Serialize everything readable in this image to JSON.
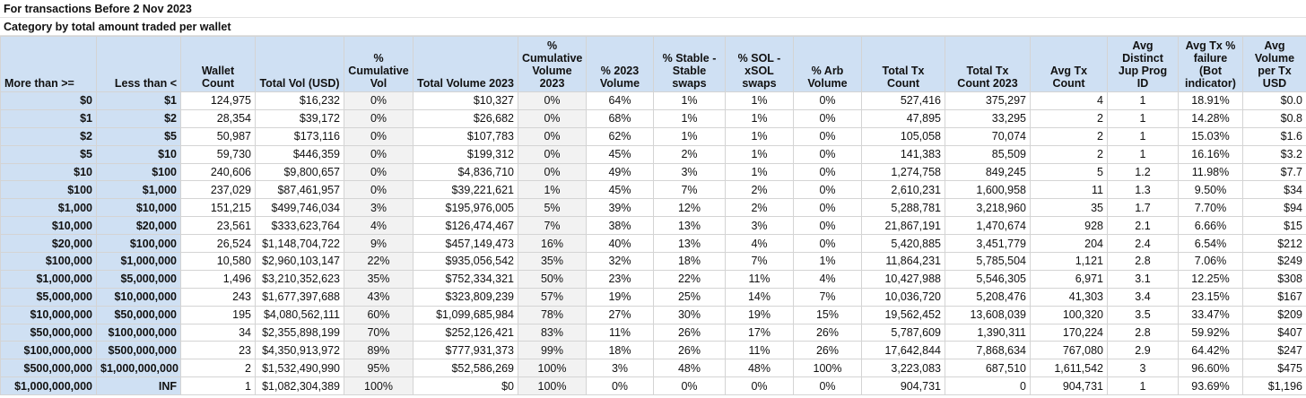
{
  "title_line_1": "For transactions Before 2 Nov 2023",
  "title_line_2": "Category by total amount traded per wallet",
  "headers": [
    "More than >=",
    "Less than <",
    "Wallet Count",
    "Total Vol (USD)",
    "% Cumulative Vol",
    "Total Volume 2023",
    "% Cumulative Volume 2023",
    "% 2023 Volume",
    "% Stable - Stable swaps",
    "% SOL - xSOL swaps",
    "% Arb Volume",
    "Total Tx Count",
    "Total Tx Count 2023",
    "Avg Tx Count",
    "Avg Distinct Jup Prog ID",
    "Avg Tx % failure (Bot indicator)",
    "Avg Volume per Tx USD"
  ],
  "rows": [
    [
      "$0",
      "$1",
      "124,975",
      "$16,232",
      "0%",
      "$10,327",
      "0%",
      "64%",
      "1%",
      "1%",
      "0%",
      "527,416",
      "375,297",
      "4",
      "1",
      "18.91%",
      "$0.0"
    ],
    [
      "$1",
      "$2",
      "28,354",
      "$39,172",
      "0%",
      "$26,682",
      "0%",
      "68%",
      "1%",
      "1%",
      "0%",
      "47,895",
      "33,295",
      "2",
      "1",
      "14.28%",
      "$0.8"
    ],
    [
      "$2",
      "$5",
      "50,987",
      "$173,116",
      "0%",
      "$107,783",
      "0%",
      "62%",
      "1%",
      "1%",
      "0%",
      "105,058",
      "70,074",
      "2",
      "1",
      "15.03%",
      "$1.6"
    ],
    [
      "$5",
      "$10",
      "59,730",
      "$446,359",
      "0%",
      "$199,312",
      "0%",
      "45%",
      "2%",
      "1%",
      "0%",
      "141,383",
      "85,509",
      "2",
      "1",
      "16.16%",
      "$3.2"
    ],
    [
      "$10",
      "$100",
      "240,606",
      "$9,800,657",
      "0%",
      "$4,836,710",
      "0%",
      "49%",
      "3%",
      "1%",
      "0%",
      "1,274,758",
      "849,245",
      "5",
      "1.2",
      "11.98%",
      "$7.7"
    ],
    [
      "$100",
      "$1,000",
      "237,029",
      "$87,461,957",
      "0%",
      "$39,221,621",
      "1%",
      "45%",
      "7%",
      "2%",
      "0%",
      "2,610,231",
      "1,600,958",
      "11",
      "1.3",
      "9.50%",
      "$34"
    ],
    [
      "$1,000",
      "$10,000",
      "151,215",
      "$499,746,034",
      "3%",
      "$195,976,005",
      "5%",
      "39%",
      "12%",
      "2%",
      "0%",
      "5,288,781",
      "3,218,960",
      "35",
      "1.7",
      "7.70%",
      "$94"
    ],
    [
      "$10,000",
      "$20,000",
      "23,561",
      "$333,623,764",
      "4%",
      "$126,474,467",
      "7%",
      "38%",
      "13%",
      "3%",
      "0%",
      "21,867,191",
      "1,470,674",
      "928",
      "2.1",
      "6.66%",
      "$15"
    ],
    [
      "$20,000",
      "$100,000",
      "26,524",
      "$1,148,704,722",
      "9%",
      "$457,149,473",
      "16%",
      "40%",
      "13%",
      "4%",
      "0%",
      "5,420,885",
      "3,451,779",
      "204",
      "2.4",
      "6.54%",
      "$212"
    ],
    [
      "$100,000",
      "$1,000,000",
      "10,580",
      "$2,960,103,147",
      "22%",
      "$935,056,542",
      "35%",
      "32%",
      "18%",
      "7%",
      "1%",
      "11,864,231",
      "5,785,504",
      "1,121",
      "2.8",
      "7.06%",
      "$249"
    ],
    [
      "$1,000,000",
      "$5,000,000",
      "1,496",
      "$3,210,352,623",
      "35%",
      "$752,334,321",
      "50%",
      "23%",
      "22%",
      "11%",
      "4%",
      "10,427,988",
      "5,546,305",
      "6,971",
      "3.1",
      "12.25%",
      "$308"
    ],
    [
      "$5,000,000",
      "$10,000,000",
      "243",
      "$1,677,397,688",
      "43%",
      "$323,809,239",
      "57%",
      "19%",
      "25%",
      "14%",
      "7%",
      "10,036,720",
      "5,208,476",
      "41,303",
      "3.4",
      "23.15%",
      "$167"
    ],
    [
      "$10,000,000",
      "$50,000,000",
      "195",
      "$4,080,562,111",
      "60%",
      "$1,099,685,984",
      "78%",
      "27%",
      "30%",
      "19%",
      "15%",
      "19,562,452",
      "13,608,039",
      "100,320",
      "3.5",
      "33.47%",
      "$209"
    ],
    [
      "$50,000,000",
      "$100,000,000",
      "34",
      "$2,355,898,199",
      "70%",
      "$252,126,421",
      "83%",
      "11%",
      "26%",
      "17%",
      "26%",
      "5,787,609",
      "1,390,311",
      "170,224",
      "2.8",
      "59.92%",
      "$407"
    ],
    [
      "$100,000,000",
      "$500,000,000",
      "23",
      "$4,350,913,972",
      "89%",
      "$777,931,373",
      "99%",
      "18%",
      "26%",
      "11%",
      "26%",
      "17,642,844",
      "7,868,634",
      "767,080",
      "2.9",
      "64.42%",
      "$247"
    ],
    [
      "$500,000,000",
      "$1,000,000,000",
      "2",
      "$1,532,490,990",
      "95%",
      "$52,586,269",
      "100%",
      "3%",
      "48%",
      "48%",
      "100%",
      "3,223,083",
      "687,510",
      "1,611,542",
      "3",
      "96.60%",
      "$475"
    ],
    [
      "$1,000,000,000",
      "INF",
      "1",
      "$1,082,304,389",
      "100%",
      "$0",
      "100%",
      "0%",
      "0%",
      "0%",
      "0%",
      "904,731",
      "0",
      "904,731",
      "1",
      "93.69%",
      "$1,196"
    ]
  ]
}
